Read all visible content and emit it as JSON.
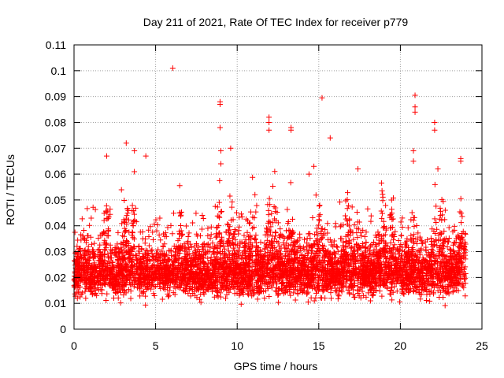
{
  "chart_data": {
    "type": "scatter",
    "title": "Day 211 of 2021, Rate Of TEC Index for receiver p779",
    "xlabel": "GPS time / hours",
    "ylabel": "ROTI / TECUs",
    "xlim": [
      0,
      25
    ],
    "ylim": [
      0,
      0.11
    ],
    "x_ticks": [
      0,
      5,
      10,
      15,
      20,
      25
    ],
    "y_ticks": [
      0,
      0.01,
      0.02,
      0.03,
      0.04,
      0.05,
      0.06,
      0.07,
      0.08,
      0.09,
      0.1,
      0.11
    ],
    "x_tick_labels": [
      "0",
      "5",
      "10",
      "15",
      "20",
      "25"
    ],
    "y_tick_labels": [
      "0",
      "0.01",
      "0.02",
      "0.03",
      "0.04",
      "0.05",
      "0.06",
      "0.07",
      "0.08",
      "0.09",
      "0.1",
      "0.11"
    ],
    "grid": true,
    "marker": "+",
    "color": "#ff0000",
    "series": [
      {
        "name": "ROTI",
        "x_range": [
          0,
          24
        ],
        "bulk_range": [
          0.005,
          0.045
        ],
        "outliers": [
          {
            "x": 6.05,
            "y": 0.101
          },
          {
            "x": 15.2,
            "y": 0.0895
          },
          {
            "x": 20.9,
            "y": 0.0905
          },
          {
            "x": 8.95,
            "y": 0.088
          },
          {
            "x": 8.95,
            "y": 0.087
          },
          {
            "x": 8.95,
            "y": 0.078
          },
          {
            "x": 11.95,
            "y": 0.082
          },
          {
            "x": 11.95,
            "y": 0.08
          },
          {
            "x": 11.95,
            "y": 0.077
          },
          {
            "x": 13.3,
            "y": 0.078
          },
          {
            "x": 13.3,
            "y": 0.077
          },
          {
            "x": 20.9,
            "y": 0.086
          },
          {
            "x": 20.9,
            "y": 0.084
          },
          {
            "x": 22.1,
            "y": 0.08
          },
          {
            "x": 22.1,
            "y": 0.077
          },
          {
            "x": 15.7,
            "y": 0.074
          },
          {
            "x": 3.2,
            "y": 0.072
          },
          {
            "x": 9.6,
            "y": 0.07
          },
          {
            "x": 9.0,
            "y": 0.069
          },
          {
            "x": 2.0,
            "y": 0.067
          },
          {
            "x": 4.4,
            "y": 0.067
          },
          {
            "x": 3.7,
            "y": 0.069
          },
          {
            "x": 23.7,
            "y": 0.066
          },
          {
            "x": 23.7,
            "y": 0.065
          },
          {
            "x": 9.0,
            "y": 0.064
          },
          {
            "x": 14.7,
            "y": 0.063
          },
          {
            "x": 17.4,
            "y": 0.062
          },
          {
            "x": 20.8,
            "y": 0.069
          },
          {
            "x": 20.8,
            "y": 0.065
          },
          {
            "x": 14.4,
            "y": 0.06
          },
          {
            "x": 12.3,
            "y": 0.061
          },
          {
            "x": 22.3,
            "y": 0.062
          }
        ]
      }
    ]
  }
}
